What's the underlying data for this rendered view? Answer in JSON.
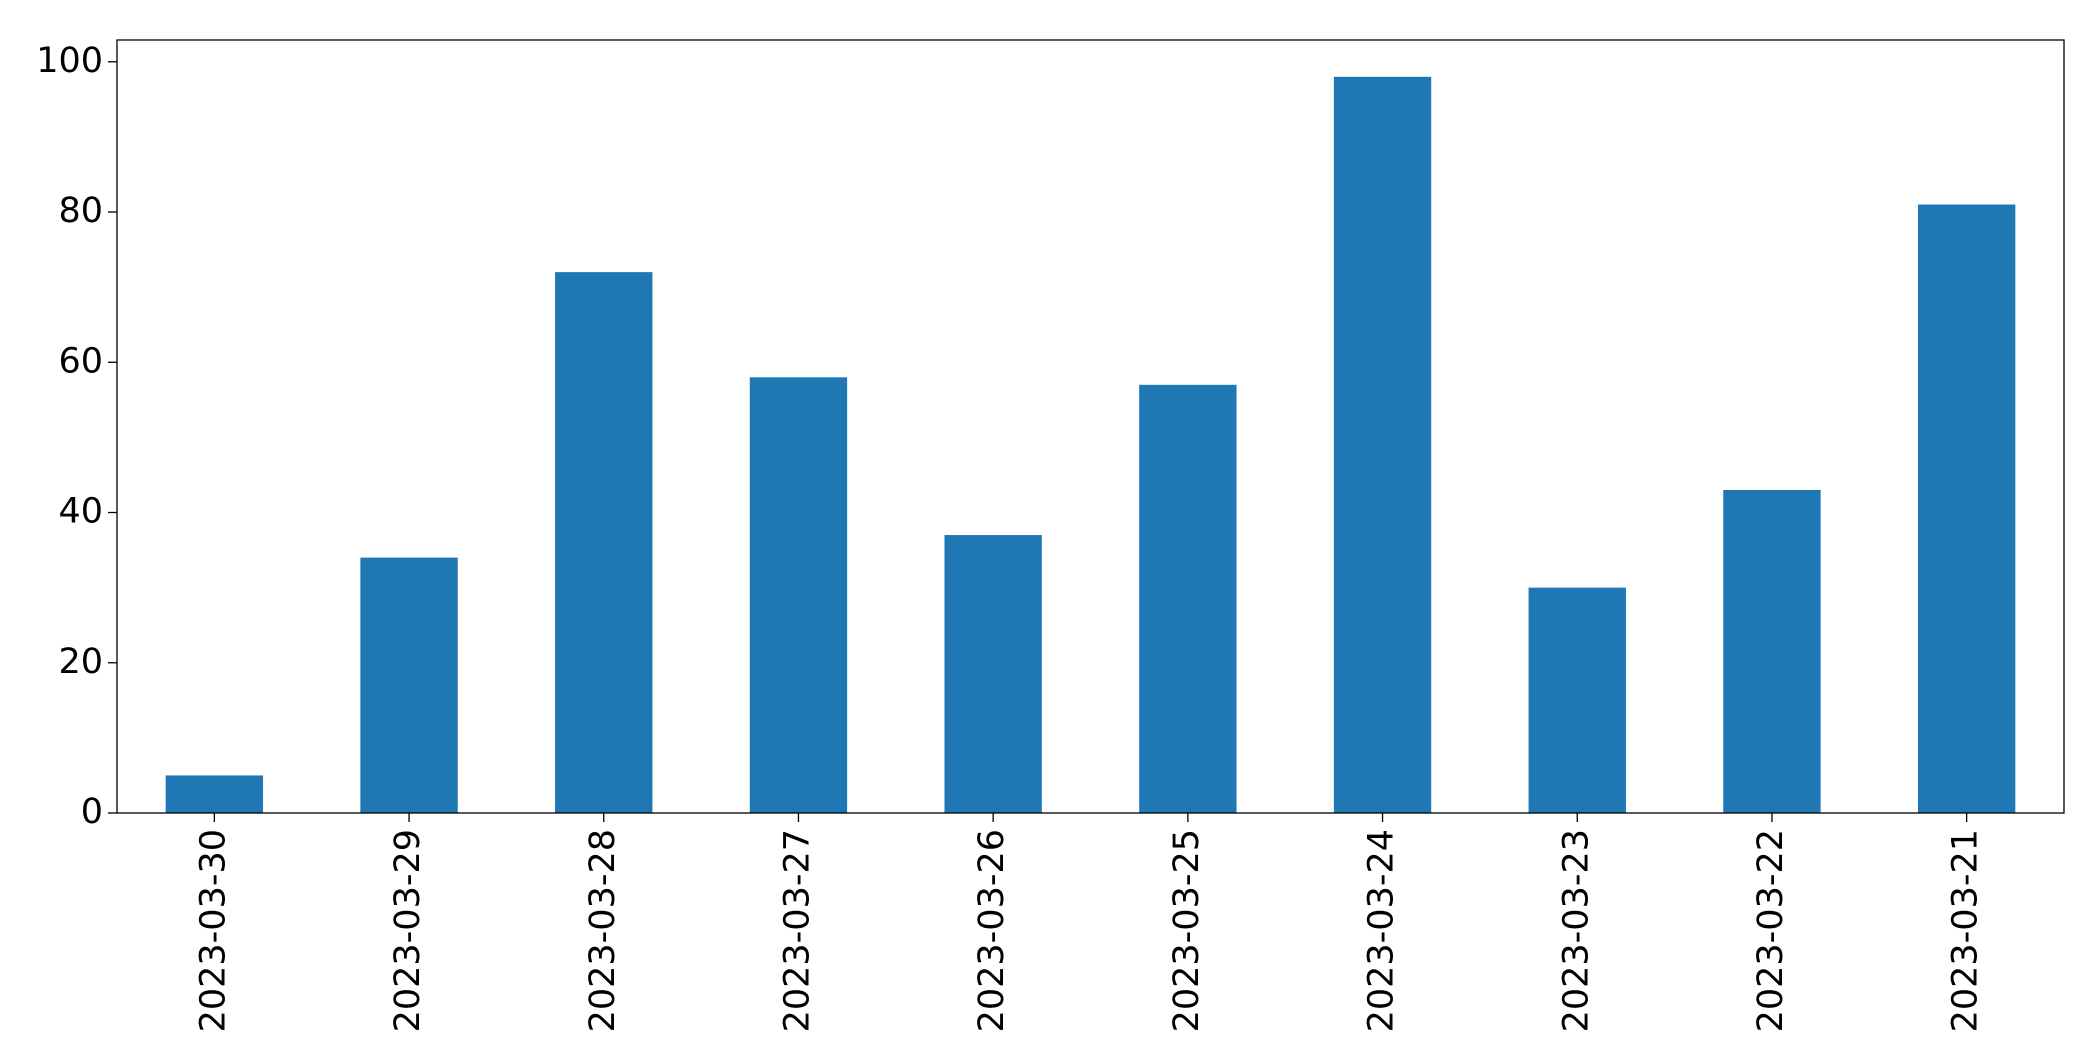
{
  "chart_data": {
    "type": "bar",
    "categories": [
      "2023-03-30",
      "2023-03-29",
      "2023-03-28",
      "2023-03-27",
      "2023-03-26",
      "2023-03-25",
      "2023-03-24",
      "2023-03-23",
      "2023-03-22",
      "2023-03-21"
    ],
    "values": [
      5,
      34,
      72,
      58,
      37,
      57,
      98,
      30,
      43,
      81
    ],
    "color": "#1f77b4",
    "ylim": [
      0,
      102.9
    ],
    "yticks": [
      0,
      20,
      40,
      60,
      80,
      100
    ],
    "grid": false
  }
}
